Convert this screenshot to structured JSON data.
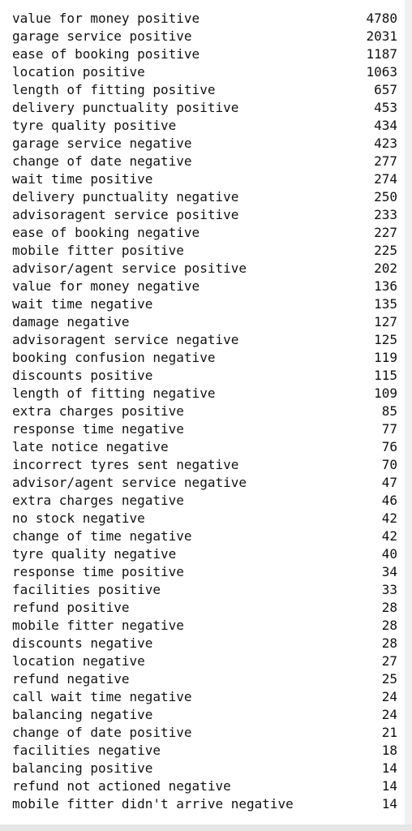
{
  "rows": [
    {
      "label": "value for money positive",
      "count": "4780"
    },
    {
      "label": "garage service positive",
      "count": "2031"
    },
    {
      "label": "ease of booking positive",
      "count": "1187"
    },
    {
      "label": "location positive",
      "count": "1063"
    },
    {
      "label": "length of fitting positive",
      "count": "657"
    },
    {
      "label": "delivery punctuality positive",
      "count": "453"
    },
    {
      "label": "tyre quality positive",
      "count": "434"
    },
    {
      "label": "garage service negative",
      "count": "423"
    },
    {
      "label": "change of date negative",
      "count": "277"
    },
    {
      "label": "wait time positive",
      "count": "274"
    },
    {
      "label": "delivery punctuality negative",
      "count": "250"
    },
    {
      "label": "advisoragent service positive",
      "count": "233"
    },
    {
      "label": "ease of booking negative",
      "count": "227"
    },
    {
      "label": "mobile fitter positive",
      "count": "225"
    },
    {
      "label": "advisor/agent service positive",
      "count": "202"
    },
    {
      "label": "value for money negative",
      "count": "136"
    },
    {
      "label": "wait time negative",
      "count": "135"
    },
    {
      "label": "damage negative",
      "count": "127"
    },
    {
      "label": "advisoragent service negative",
      "count": "125"
    },
    {
      "label": "booking confusion negative",
      "count": "119"
    },
    {
      "label": "discounts positive",
      "count": "115"
    },
    {
      "label": "length of fitting negative",
      "count": "109"
    },
    {
      "label": "extra charges positive",
      "count": "85"
    },
    {
      "label": "response time negative",
      "count": "77"
    },
    {
      "label": "late notice negative",
      "count": "76"
    },
    {
      "label": "incorrect tyres sent negative",
      "count": "70"
    },
    {
      "label": "advisor/agent service negative",
      "count": "47"
    },
    {
      "label": "extra charges negative",
      "count": "46"
    },
    {
      "label": "no stock negative",
      "count": "42"
    },
    {
      "label": "change of time negative",
      "count": "42"
    },
    {
      "label": "tyre quality negative",
      "count": "40"
    },
    {
      "label": "response time positive",
      "count": "34"
    },
    {
      "label": "facilities positive",
      "count": "33"
    },
    {
      "label": "refund positive",
      "count": "28"
    },
    {
      "label": "mobile fitter negative",
      "count": "28"
    },
    {
      "label": "discounts negative",
      "count": "28"
    },
    {
      "label": "location negative",
      "count": "27"
    },
    {
      "label": "refund negative",
      "count": "25"
    },
    {
      "label": "call wait time negative",
      "count": "24"
    },
    {
      "label": "balancing negative",
      "count": "24"
    },
    {
      "label": "change of date positive",
      "count": "21"
    },
    {
      "label": "facilities negative",
      "count": "18"
    },
    {
      "label": "balancing positive",
      "count": "14"
    },
    {
      "label": "refund not actioned negative",
      "count": "14"
    },
    {
      "label": "mobile fitter didn't arrive negative",
      "count": "14"
    }
  ]
}
